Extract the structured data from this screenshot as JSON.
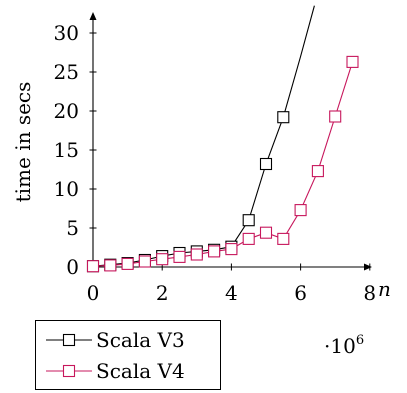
{
  "chart_data": {
    "type": "line",
    "title": "",
    "xlabel": "n",
    "ylabel": "time in secs",
    "x_multiplier": {
      "base": "·10",
      "exponent": "6"
    },
    "xlim": [
      0,
      8
    ],
    "ylim": [
      0,
      32
    ],
    "x_ticks": [
      0,
      2,
      4,
      6,
      8
    ],
    "y_ticks": [
      0,
      5,
      10,
      15,
      20,
      25,
      30
    ],
    "grid": false,
    "legend_position": "bottom-left outside",
    "series": [
      {
        "name": "Scala V3",
        "color": "#000000",
        "marker": "square",
        "x": [
          0,
          0.5,
          1,
          1.5,
          2,
          2.5,
          3,
          3.5,
          4,
          4.5,
          5,
          5.5,
          6,
          6.4
        ],
        "y": [
          0.1,
          0.3,
          0.5,
          0.9,
          1.4,
          1.8,
          2.0,
          2.2,
          2.6,
          6.0,
          13.2,
          19.2,
          27.0,
          33.5
        ],
        "markers_at_points": 12
      },
      {
        "name": "Scala V4",
        "color": "#c7175c",
        "marker": "square",
        "x": [
          0,
          0.5,
          1,
          1.5,
          2,
          2.5,
          3,
          3.5,
          4,
          4.5,
          5,
          5.5,
          6,
          6.5,
          7,
          7.5
        ],
        "y": [
          0.1,
          0.2,
          0.4,
          0.7,
          1.0,
          1.3,
          1.6,
          2.0,
          2.3,
          3.6,
          4.4,
          3.6,
          7.3,
          12.3,
          19.3,
          26.3
        ]
      }
    ]
  }
}
